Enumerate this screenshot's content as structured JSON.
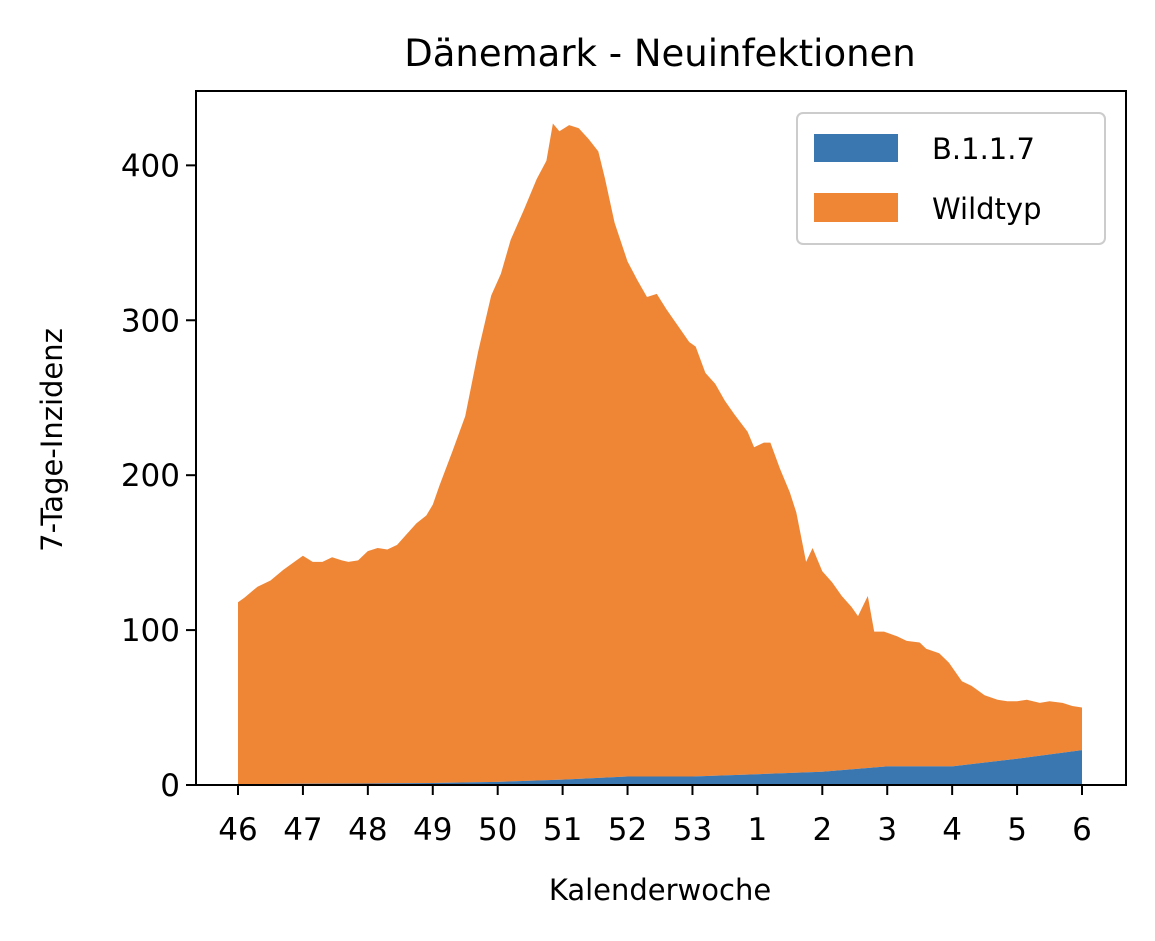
{
  "chart_data": {
    "type": "area",
    "stacked": true,
    "title": "Dänemark - Neuinfektionen",
    "xlabel": "Kalenderwoche",
    "ylabel": "7-Tage-Inzidenz",
    "x_tick_labels": [
      "46",
      "47",
      "48",
      "49",
      "50",
      "51",
      "52",
      "53",
      "1",
      "2",
      "3",
      "4",
      "5",
      "6"
    ],
    "x_range": [
      0,
      13
    ],
    "ylim": [
      0,
      448
    ],
    "y_ticks": [
      0,
      100,
      200,
      300,
      400
    ],
    "legend_position": "top-right",
    "grid": false,
    "series": [
      {
        "name": "B.1.1.7",
        "color": "#3a76b0",
        "points": [
          [
            0,
            0.5
          ],
          [
            1,
            0.8
          ],
          [
            2,
            1
          ],
          [
            3,
            1.3
          ],
          [
            4,
            2
          ],
          [
            5,
            3.5
          ],
          [
            6,
            5.5
          ],
          [
            7,
            5.5
          ],
          [
            8,
            7
          ],
          [
            9,
            8.5
          ],
          [
            10,
            12
          ],
          [
            11,
            12
          ],
          [
            12,
            17
          ],
          [
            13,
            22.5
          ]
        ]
      },
      {
        "name": "Wildtyp",
        "color": "#ef8636",
        "total_points": [
          [
            0,
            118
          ],
          [
            0.1,
            121
          ],
          [
            0.3,
            128
          ],
          [
            0.5,
            132
          ],
          [
            0.7,
            139
          ],
          [
            0.9,
            145
          ],
          [
            1.0,
            148
          ],
          [
            1.15,
            144
          ],
          [
            1.3,
            144
          ],
          [
            1.45,
            147
          ],
          [
            1.6,
            145
          ],
          [
            1.7,
            144
          ],
          [
            1.85,
            145
          ],
          [
            2.0,
            151
          ],
          [
            2.15,
            153
          ],
          [
            2.3,
            152
          ],
          [
            2.45,
            155
          ],
          [
            2.6,
            162
          ],
          [
            2.75,
            169
          ],
          [
            2.9,
            174
          ],
          [
            3.0,
            181
          ],
          [
            3.1,
            193
          ],
          [
            3.3,
            215
          ],
          [
            3.5,
            238
          ],
          [
            3.7,
            280
          ],
          [
            3.9,
            316
          ],
          [
            4.05,
            330
          ],
          [
            4.2,
            352
          ],
          [
            4.4,
            371
          ],
          [
            4.6,
            391
          ],
          [
            4.75,
            403
          ],
          [
            4.85,
            427
          ],
          [
            4.95,
            422
          ],
          [
            5.1,
            426
          ],
          [
            5.25,
            424
          ],
          [
            5.4,
            417
          ],
          [
            5.55,
            409
          ],
          [
            5.65,
            392
          ],
          [
            5.8,
            363
          ],
          [
            6.0,
            338
          ],
          [
            6.15,
            326
          ],
          [
            6.3,
            315
          ],
          [
            6.45,
            317
          ],
          [
            6.6,
            307
          ],
          [
            6.8,
            295
          ],
          [
            6.95,
            286
          ],
          [
            7.05,
            283
          ],
          [
            7.2,
            266
          ],
          [
            7.35,
            259
          ],
          [
            7.5,
            248
          ],
          [
            7.65,
            239
          ],
          [
            7.85,
            228
          ],
          [
            7.95,
            218
          ],
          [
            8.1,
            221
          ],
          [
            8.2,
            221
          ],
          [
            8.35,
            204
          ],
          [
            8.5,
            189
          ],
          [
            8.6,
            176
          ],
          [
            8.75,
            144
          ],
          [
            8.85,
            153
          ],
          [
            9.0,
            138
          ],
          [
            9.15,
            131
          ],
          [
            9.3,
            122
          ],
          [
            9.45,
            115
          ],
          [
            9.55,
            109
          ],
          [
            9.7,
            122
          ],
          [
            9.8,
            99
          ],
          [
            9.95,
            99
          ],
          [
            10.15,
            96
          ],
          [
            10.3,
            93
          ],
          [
            10.5,
            92
          ],
          [
            10.6,
            88
          ],
          [
            10.8,
            85
          ],
          [
            10.95,
            79
          ],
          [
            11.15,
            67
          ],
          [
            11.3,
            64
          ],
          [
            11.5,
            58
          ],
          [
            11.7,
            55
          ],
          [
            11.85,
            54
          ],
          [
            12.0,
            54
          ],
          [
            12.15,
            55
          ],
          [
            12.35,
            53
          ],
          [
            12.5,
            54
          ],
          [
            12.7,
            53
          ],
          [
            12.85,
            51
          ],
          [
            13.0,
            50
          ]
        ]
      }
    ]
  }
}
